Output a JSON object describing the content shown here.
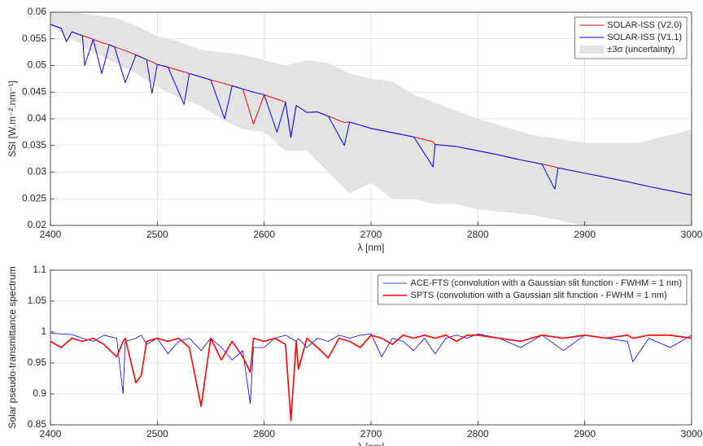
{
  "chart_data": [
    {
      "type": "line",
      "x_label": "λ [nm]",
      "y_label": "SSI [W.m⁻².nm⁻¹]",
      "xlim": [
        2400,
        3000
      ],
      "xticks": [
        2400,
        2500,
        2600,
        2700,
        2800,
        2900,
        3000
      ],
      "ylim": [
        0.02,
        0.06
      ],
      "yticks": [
        0.02,
        0.025,
        0.03,
        0.035,
        0.04,
        0.045,
        0.05,
        0.055,
        0.06
      ],
      "grid": true,
      "legend": "northeast",
      "band": {
        "name": "±3σ (uncertainty)",
        "color": "#e3e3e3",
        "x": [
          2400,
          2420,
          2440,
          2460,
          2480,
          2500,
          2520,
          2540,
          2560,
          2580,
          2600,
          2620,
          2640,
          2660,
          2680,
          2700,
          2720,
          2740,
          2760,
          2780,
          2800,
          2850,
          2900,
          2950,
          3000
        ],
        "upper": [
          0.06,
          0.06,
          0.0595,
          0.059,
          0.0575,
          0.0555,
          0.0545,
          0.053,
          0.0525,
          0.052,
          0.051,
          0.05,
          0.051,
          0.0505,
          0.0485,
          0.0475,
          0.047,
          0.0445,
          0.043,
          0.0415,
          0.04,
          0.037,
          0.0355,
          0.0355,
          0.038
        ],
        "lower": [
          0.0575,
          0.055,
          0.0525,
          0.0505,
          0.0485,
          0.046,
          0.044,
          0.0425,
          0.04,
          0.038,
          0.0375,
          0.034,
          0.034,
          0.03,
          0.026,
          0.028,
          0.025,
          0.025,
          0.024,
          0.024,
          0.023,
          0.022,
          0.02,
          0.019,
          0.018
        ]
      },
      "x": [
        2400,
        2410,
        2415,
        2420,
        2430,
        2432,
        2440,
        2448,
        2455,
        2460,
        2470,
        2480,
        2490,
        2495,
        2500,
        2510,
        2525,
        2530,
        2540,
        2550,
        2563,
        2570,
        2580,
        2590,
        2600,
        2612,
        2620,
        2625,
        2630,
        2640,
        2650,
        2660,
        2675,
        2680,
        2700,
        2720,
        2740,
        2758,
        2760,
        2780,
        2800,
        2820,
        2840,
        2860,
        2872,
        2875,
        2900,
        2920,
        2940,
        2960,
        2980,
        3000
      ],
      "series": [
        {
          "name": "SOLAR-ISS (V2.0)",
          "color": "#ff0000",
          "values": [
            0.0577,
            0.057,
            0.0545,
            0.0563,
            0.0556,
            0.0555,
            0.0549,
            0.0543,
            0.0539,
            0.0535,
            0.0528,
            0.052,
            0.0511,
            0.0507,
            0.0502,
            0.0497,
            0.0488,
            0.0485,
            0.0479,
            0.0473,
            0.0466,
            0.0462,
            0.0456,
            0.039,
            0.0445,
            0.0437,
            0.0431,
            0.0365,
            0.0425,
            0.0412,
            0.0413,
            0.0405,
            0.0393,
            0.0394,
            0.0382,
            0.0374,
            0.0366,
            0.0357,
            0.0352,
            0.0348,
            0.034,
            0.0332,
            0.0323,
            0.0315,
            0.031,
            0.0308,
            0.0298,
            0.029,
            0.0282,
            0.0273,
            0.0265,
            0.0257
          ]
        },
        {
          "name": "SOLAR-ISS (V1.1)",
          "color": "#0000ff",
          "values": [
            0.0577,
            0.057,
            0.0545,
            0.0563,
            0.0556,
            0.05,
            0.0549,
            0.0485,
            0.0539,
            0.0535,
            0.0468,
            0.052,
            0.0511,
            0.0448,
            0.0502,
            0.0497,
            0.0427,
            0.0485,
            0.0479,
            0.0473,
            0.04,
            0.0462,
            0.0456,
            0.045,
            0.0445,
            0.0375,
            0.0431,
            0.0365,
            0.0425,
            0.0412,
            0.0413,
            0.0405,
            0.035,
            0.0394,
            0.0382,
            0.0374,
            0.0366,
            0.031,
            0.0352,
            0.0348,
            0.034,
            0.0332,
            0.0323,
            0.0315,
            0.0268,
            0.0308,
            0.0298,
            0.029,
            0.0282,
            0.0273,
            0.0265,
            0.0257
          ]
        }
      ]
    },
    {
      "type": "line",
      "x_label": "λ [nm]",
      "y_label": "Solar pseudo-transmittance spectrum",
      "xlim": [
        2400,
        3000
      ],
      "xticks": [
        2400,
        2500,
        2600,
        2700,
        2800,
        2900,
        3000
      ],
      "ylim": [
        0.85,
        1.1
      ],
      "yticks": [
        0.85,
        0.9,
        0.95,
        1,
        1.05,
        1.1
      ],
      "grid": true,
      "legend": "northeast",
      "x": [
        2400,
        2410,
        2420,
        2430,
        2440,
        2450,
        2462,
        2468,
        2470,
        2480,
        2485,
        2490,
        2500,
        2510,
        2520,
        2530,
        2541,
        2550,
        2560,
        2570,
        2580,
        2587,
        2590,
        2600,
        2610,
        2620,
        2625,
        2630,
        2632,
        2640,
        2650,
        2660,
        2670,
        2680,
        2690,
        2700,
        2710,
        2720,
        2730,
        2740,
        2750,
        2760,
        2770,
        2780,
        2790,
        2800,
        2820,
        2840,
        2860,
        2880,
        2900,
        2920,
        2940,
        2945,
        2960,
        2980,
        3000
      ],
      "series": [
        {
          "name": "ACE-FTS (convolution with a Gaussian slit function - FWHM = 1 nm)",
          "color": "#0000ff",
          "values": [
            0.998,
            0.997,
            0.996,
            0.99,
            0.985,
            0.995,
            0.99,
            0.9,
            0.985,
            0.99,
            0.995,
            0.98,
            0.99,
            0.965,
            0.985,
            0.99,
            0.97,
            0.99,
            0.975,
            0.955,
            0.97,
            0.884,
            0.975,
            0.975,
            0.99,
            0.995,
            0.99,
            0.985,
            0.99,
            0.975,
            0.99,
            0.985,
            0.995,
            0.99,
            0.995,
            0.997,
            0.96,
            0.99,
            0.985,
            0.97,
            0.99,
            0.965,
            0.99,
            0.995,
            0.99,
            0.997,
            0.99,
            0.975,
            0.995,
            0.97,
            0.995,
            0.99,
            0.985,
            0.952,
            0.99,
            0.975,
            0.995
          ]
        },
        {
          "name": "SPTS (convolution with a Gaussian slit function - FWHM = 1 nm)",
          "color": "#ff0000",
          "values": [
            0.985,
            0.975,
            0.99,
            0.985,
            0.99,
            0.98,
            0.96,
            0.985,
            0.99,
            0.918,
            0.93,
            0.985,
            0.99,
            0.985,
            0.99,
            0.975,
            0.88,
            0.99,
            0.955,
            0.985,
            0.96,
            0.935,
            0.99,
            0.985,
            0.99,
            0.98,
            0.857,
            0.985,
            0.94,
            0.99,
            0.975,
            0.958,
            0.99,
            0.985,
            0.975,
            0.995,
            0.99,
            0.98,
            0.995,
            0.99,
            0.995,
            0.99,
            0.995,
            0.985,
            0.995,
            0.995,
            0.99,
            0.985,
            0.995,
            0.99,
            0.995,
            0.99,
            0.995,
            0.99,
            0.995,
            0.995,
            0.99
          ]
        }
      ]
    }
  ]
}
